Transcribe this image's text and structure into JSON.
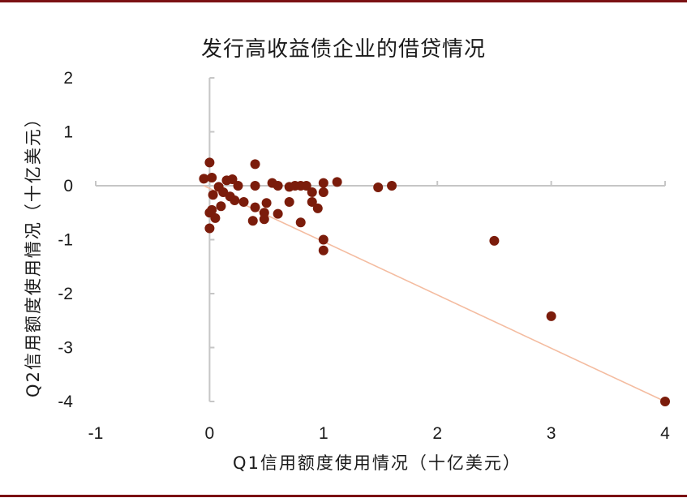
{
  "colors": {
    "frame": "#7b1113",
    "marker": "#7b1c0b",
    "trendline": "#f4bca0",
    "axis": "#c6c6c6"
  },
  "chart_data": {
    "type": "scatter",
    "title": "发行高收益债企业的借贷情况",
    "xlabel": "Q1信用额度使用情况（十亿美元）",
    "ylabel": "Q2信用额度使用情况（十亿美元）",
    "xlim": [
      -1,
      4
    ],
    "ylim": [
      -4,
      2
    ],
    "xticks": [
      "-1",
      "0",
      "1",
      "2",
      "3",
      "4"
    ],
    "yticks": [
      "2",
      "1",
      "0",
      "-1",
      "-2",
      "-3",
      "-4"
    ],
    "grid": false,
    "legend": "none",
    "points": [
      {
        "x": -0.05,
        "y": 0.13
      },
      {
        "x": 0.0,
        "y": 0.43
      },
      {
        "x": 0.02,
        "y": 0.15
      },
      {
        "x": 0.0,
        "y": -0.5
      },
      {
        "x": 0.0,
        "y": -0.79
      },
      {
        "x": 0.02,
        "y": -0.45
      },
      {
        "x": 0.03,
        "y": -0.17
      },
      {
        "x": 0.05,
        "y": -0.6
      },
      {
        "x": 0.08,
        "y": -0.02
      },
      {
        "x": 0.1,
        "y": -0.38
      },
      {
        "x": 0.12,
        "y": -0.12
      },
      {
        "x": 0.15,
        "y": 0.1
      },
      {
        "x": 0.18,
        "y": -0.2
      },
      {
        "x": 0.2,
        "y": 0.12
      },
      {
        "x": 0.22,
        "y": -0.27
      },
      {
        "x": 0.25,
        "y": 0.0
      },
      {
        "x": 0.3,
        "y": -0.3
      },
      {
        "x": 0.38,
        "y": -0.65
      },
      {
        "x": 0.4,
        "y": 0.4
      },
      {
        "x": 0.4,
        "y": -0.4
      },
      {
        "x": 0.4,
        "y": 0.0
      },
      {
        "x": 0.48,
        "y": -0.62
      },
      {
        "x": 0.48,
        "y": -0.5
      },
      {
        "x": 0.5,
        "y": -0.32
      },
      {
        "x": 0.55,
        "y": 0.05
      },
      {
        "x": 0.6,
        "y": 0.0
      },
      {
        "x": 0.6,
        "y": -0.52
      },
      {
        "x": 0.7,
        "y": -0.02
      },
      {
        "x": 0.7,
        "y": -0.3
      },
      {
        "x": 0.75,
        "y": 0.0
      },
      {
        "x": 0.8,
        "y": 0.0
      },
      {
        "x": 0.8,
        "y": -0.68
      },
      {
        "x": 0.85,
        "y": 0.0
      },
      {
        "x": 0.9,
        "y": -0.12
      },
      {
        "x": 0.9,
        "y": -0.3
      },
      {
        "x": 0.95,
        "y": -0.42
      },
      {
        "x": 1.0,
        "y": 0.05
      },
      {
        "x": 1.0,
        "y": -0.12
      },
      {
        "x": 1.0,
        "y": -1.0
      },
      {
        "x": 1.0,
        "y": -1.2
      },
      {
        "x": 1.12,
        "y": 0.07
      },
      {
        "x": 1.48,
        "y": -0.03
      },
      {
        "x": 1.6,
        "y": 0.0
      },
      {
        "x": 2.5,
        "y": -1.02
      },
      {
        "x": 3.0,
        "y": -2.42
      },
      {
        "x": 4.0,
        "y": -4.0
      }
    ],
    "trendline": {
      "x": [
        -0.05,
        4.0
      ],
      "y": [
        0.0,
        -4.0
      ]
    }
  }
}
